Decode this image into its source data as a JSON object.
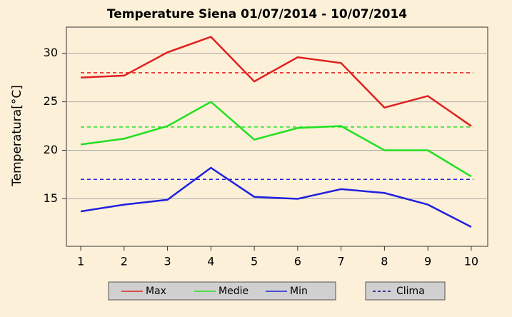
{
  "chart_data": {
    "type": "line",
    "title": "Temperature Siena 01/07/2014 - 10/07/2014",
    "y_label": "Temperatura[°C]",
    "x": [
      1,
      2,
      3,
      4,
      5,
      6,
      7,
      8,
      9,
      10
    ],
    "series": [
      {
        "name": "Max",
        "color": "#e02020",
        "values": [
          27.5,
          27.7,
          30.1,
          31.7,
          27.1,
          29.6,
          29.0,
          24.4,
          25.6,
          22.5
        ]
      },
      {
        "name": "Medie",
        "color": "#20e020",
        "values": [
          20.6,
          21.2,
          22.5,
          25.0,
          21.1,
          22.3,
          22.5,
          20.0,
          20.0,
          17.3
        ]
      },
      {
        "name": "Min",
        "color": "#2020e0",
        "values": [
          13.7,
          14.4,
          14.9,
          18.2,
          15.2,
          15.0,
          16.0,
          15.6,
          14.4,
          12.1
        ]
      }
    ],
    "clima": {
      "name": "Clima",
      "color": "#000080",
      "values": [
        28.0,
        22.4,
        17.0
      ],
      "colors": [
        "#e02020",
        "#20e020",
        "#2020e0"
      ]
    },
    "xlim": [
      0.67,
      10.38
    ],
    "ylim": [
      10.1,
      32.7
    ],
    "xticks": [
      1,
      2,
      3,
      4,
      5,
      6,
      7,
      8,
      9,
      10
    ],
    "yticks": [
      15,
      20,
      25,
      30
    ],
    "grid": true
  }
}
